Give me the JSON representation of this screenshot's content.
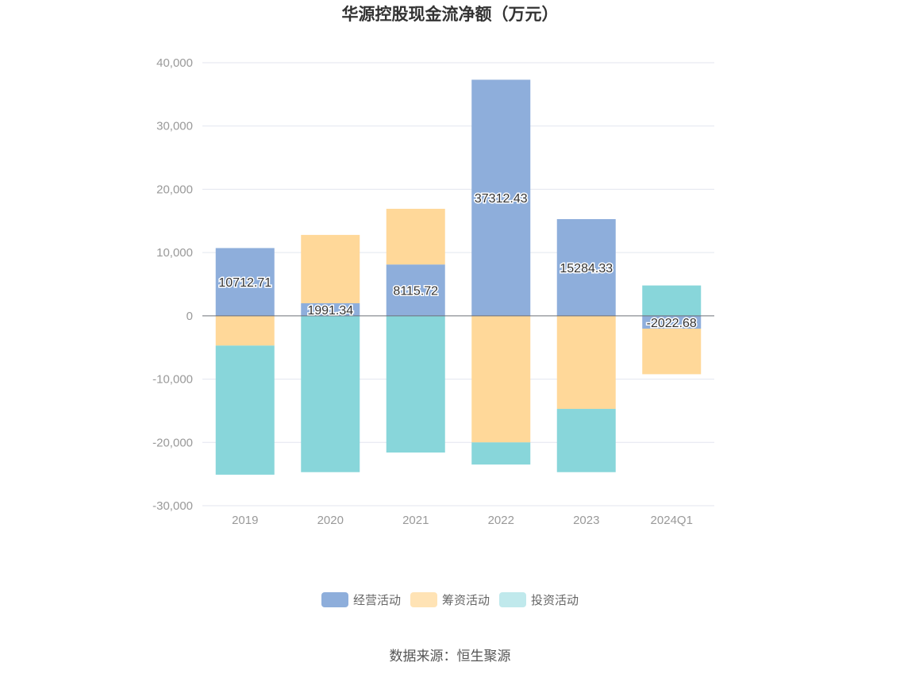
{
  "chart_data": {
    "type": "bar",
    "stacked": true,
    "title": "华源控股现金流净额（万元）",
    "xlabel": "",
    "ylabel": "",
    "ylim": [
      -30000,
      40000
    ],
    "yticks": [
      40000,
      30000,
      20000,
      10000,
      0,
      -10000,
      -20000,
      -30000
    ],
    "ytick_labels": [
      "40,000",
      "30,000",
      "20,000",
      "10,000",
      "0",
      "-10,000",
      "-20,000",
      "-30,000"
    ],
    "categories": [
      "2019",
      "2020",
      "2021",
      "2022",
      "2023",
      "2024Q1"
    ],
    "series": [
      {
        "name": "经营活动",
        "color": "#8eaedb",
        "values": [
          10712.71,
          1991.34,
          8115.72,
          37312.43,
          15284.33,
          -2022.68
        ]
      },
      {
        "name": "筹资活动",
        "color": "#ffd899",
        "values": [
          -4700,
          10800,
          8800,
          -20000,
          -14700,
          -7200
        ]
      },
      {
        "name": "投资活动",
        "color": "#88d6da",
        "values": [
          -20400,
          -24700,
          -21600,
          -3500,
          -10000,
          4800
        ]
      }
    ],
    "data_labels": [
      "10712.71",
      "1991.34",
      "8115.72",
      "37312.43",
      "15284.33",
      "-2022.68"
    ],
    "grid": true,
    "legend": "bottom-center"
  },
  "legend_items": [
    {
      "label": "经营活动",
      "color": "#8eaedb"
    },
    {
      "label": "筹资活动",
      "color": "#ffe3b5"
    },
    {
      "label": "投资活动",
      "color": "#c0e9ec"
    }
  ],
  "source": "数据来源：恒生聚源"
}
